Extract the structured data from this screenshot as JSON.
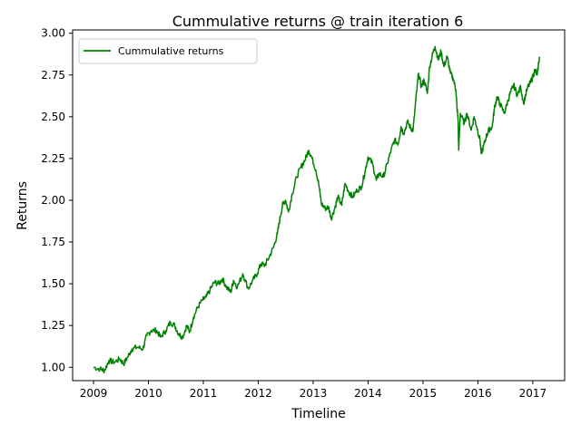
{
  "chart_data": {
    "type": "line",
    "title": "Cummulative returns @ train iteration 6",
    "xlabel": "Timeline",
    "ylabel": "Returns",
    "xlim": [
      2008.62,
      2017.58
    ],
    "ylim": [
      0.92,
      3.02
    ],
    "x_ticks": [
      "2009",
      "2010",
      "2011",
      "2012",
      "2013",
      "2014",
      "2015",
      "2016",
      "2017"
    ],
    "y_ticks": [
      "1.00",
      "1.25",
      "1.50",
      "1.75",
      "2.00",
      "2.25",
      "2.50",
      "2.75",
      "3.00"
    ],
    "legend_position": "top-left",
    "grid": false,
    "line_color": "#008000",
    "series": [
      {
        "name": "Cummulative returns",
        "points": [
          [
            2009.0,
            1.0
          ],
          [
            2009.12,
            0.99
          ],
          [
            2009.2,
            0.98
          ],
          [
            2009.28,
            1.04
          ],
          [
            2009.38,
            1.03
          ],
          [
            2009.48,
            1.05
          ],
          [
            2009.55,
            1.02
          ],
          [
            2009.62,
            1.06
          ],
          [
            2009.7,
            1.11
          ],
          [
            2009.8,
            1.12
          ],
          [
            2009.9,
            1.11
          ],
          [
            2009.97,
            1.19
          ],
          [
            2010.05,
            1.22
          ],
          [
            2010.15,
            1.22
          ],
          [
            2010.22,
            1.18
          ],
          [
            2010.32,
            1.22
          ],
          [
            2010.4,
            1.27
          ],
          [
            2010.48,
            1.25
          ],
          [
            2010.55,
            1.2
          ],
          [
            2010.62,
            1.18
          ],
          [
            2010.7,
            1.25
          ],
          [
            2010.75,
            1.21
          ],
          [
            2010.82,
            1.3
          ],
          [
            2010.9,
            1.36
          ],
          [
            2010.98,
            1.4
          ],
          [
            2011.05,
            1.42
          ],
          [
            2011.12,
            1.46
          ],
          [
            2011.2,
            1.51
          ],
          [
            2011.28,
            1.5
          ],
          [
            2011.35,
            1.53
          ],
          [
            2011.42,
            1.48
          ],
          [
            2011.5,
            1.45
          ],
          [
            2011.55,
            1.52
          ],
          [
            2011.62,
            1.48
          ],
          [
            2011.72,
            1.56
          ],
          [
            2011.82,
            1.47
          ],
          [
            2011.9,
            1.52
          ],
          [
            2011.98,
            1.56
          ],
          [
            2012.05,
            1.62
          ],
          [
            2012.12,
            1.61
          ],
          [
            2012.2,
            1.66
          ],
          [
            2012.28,
            1.72
          ],
          [
            2012.35,
            1.8
          ],
          [
            2012.4,
            1.9
          ],
          [
            2012.45,
            1.98
          ],
          [
            2012.5,
            2.0
          ],
          [
            2012.55,
            1.93
          ],
          [
            2012.62,
            2.04
          ],
          [
            2012.7,
            2.14
          ],
          [
            2012.78,
            2.2
          ],
          [
            2012.85,
            2.24
          ],
          [
            2012.92,
            2.3
          ],
          [
            2012.97,
            2.26
          ],
          [
            2013.05,
            2.18
          ],
          [
            2013.1,
            2.1
          ],
          [
            2013.15,
            1.98
          ],
          [
            2013.22,
            1.95
          ],
          [
            2013.28,
            1.96
          ],
          [
            2013.33,
            1.89
          ],
          [
            2013.4,
            1.96
          ],
          [
            2013.45,
            2.02
          ],
          [
            2013.52,
            1.97
          ],
          [
            2013.58,
            2.1
          ],
          [
            2013.65,
            2.05
          ],
          [
            2013.72,
            2.02
          ],
          [
            2013.8,
            2.06
          ],
          [
            2013.88,
            2.08
          ],
          [
            2013.95,
            2.18
          ],
          [
            2014.0,
            2.26
          ],
          [
            2014.08,
            2.22
          ],
          [
            2014.15,
            2.12
          ],
          [
            2014.2,
            2.16
          ],
          [
            2014.28,
            2.14
          ],
          [
            2014.35,
            2.22
          ],
          [
            2014.42,
            2.3
          ],
          [
            2014.48,
            2.36
          ],
          [
            2014.55,
            2.34
          ],
          [
            2014.6,
            2.44
          ],
          [
            2014.65,
            2.4
          ],
          [
            2014.72,
            2.47
          ],
          [
            2014.78,
            2.43
          ],
          [
            2014.82,
            2.42
          ],
          [
            2014.87,
            2.6
          ],
          [
            2014.92,
            2.76
          ],
          [
            2014.97,
            2.68
          ],
          [
            2015.02,
            2.72
          ],
          [
            2015.08,
            2.64
          ],
          [
            2015.12,
            2.8
          ],
          [
            2015.18,
            2.88
          ],
          [
            2015.22,
            2.92
          ],
          [
            2015.28,
            2.84
          ],
          [
            2015.33,
            2.89
          ],
          [
            2015.38,
            2.8
          ],
          [
            2015.44,
            2.86
          ],
          [
            2015.5,
            2.76
          ],
          [
            2015.55,
            2.73
          ],
          [
            2015.6,
            2.66
          ],
          [
            2015.62,
            2.55
          ],
          [
            2015.64,
            2.49
          ],
          [
            2015.65,
            2.3
          ],
          [
            2015.68,
            2.52
          ],
          [
            2015.75,
            2.46
          ],
          [
            2015.8,
            2.52
          ],
          [
            2015.88,
            2.42
          ],
          [
            2015.93,
            2.5
          ],
          [
            2015.98,
            2.44
          ],
          [
            2016.04,
            2.36
          ],
          [
            2016.06,
            2.28
          ],
          [
            2016.1,
            2.32
          ],
          [
            2016.15,
            2.38
          ],
          [
            2016.2,
            2.42
          ],
          [
            2016.26,
            2.44
          ],
          [
            2016.3,
            2.55
          ],
          [
            2016.35,
            2.62
          ],
          [
            2016.4,
            2.58
          ],
          [
            2016.48,
            2.52
          ],
          [
            2016.55,
            2.6
          ],
          [
            2016.6,
            2.65
          ],
          [
            2016.65,
            2.69
          ],
          [
            2016.72,
            2.63
          ],
          [
            2016.78,
            2.68
          ],
          [
            2016.83,
            2.58
          ],
          [
            2016.9,
            2.67
          ],
          [
            2016.95,
            2.7
          ],
          [
            2017.0,
            2.74
          ],
          [
            2017.04,
            2.78
          ],
          [
            2017.08,
            2.75
          ],
          [
            2017.12,
            2.86
          ]
        ]
      }
    ]
  }
}
